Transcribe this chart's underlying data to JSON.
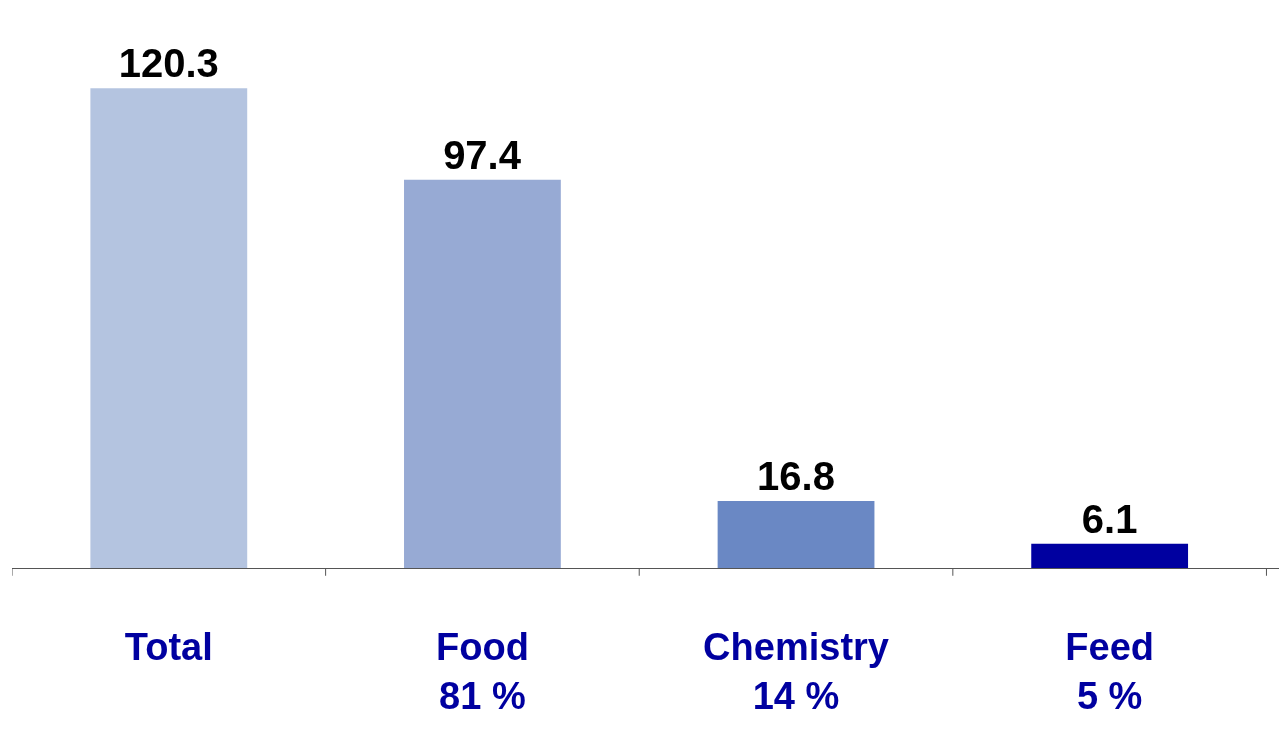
{
  "chart_data": {
    "type": "bar",
    "categories": [
      "Total",
      "Food\n81 %",
      "Chemistry\n14 %",
      "Feed\n5 %"
    ],
    "values": [
      120.3,
      97.4,
      16.8,
      6.1
    ],
    "colors": [
      "#b4c4e0",
      "#97aad4",
      "#6a88c4",
      "#0000a0"
    ],
    "data_labels": true,
    "grid": false
  }
}
